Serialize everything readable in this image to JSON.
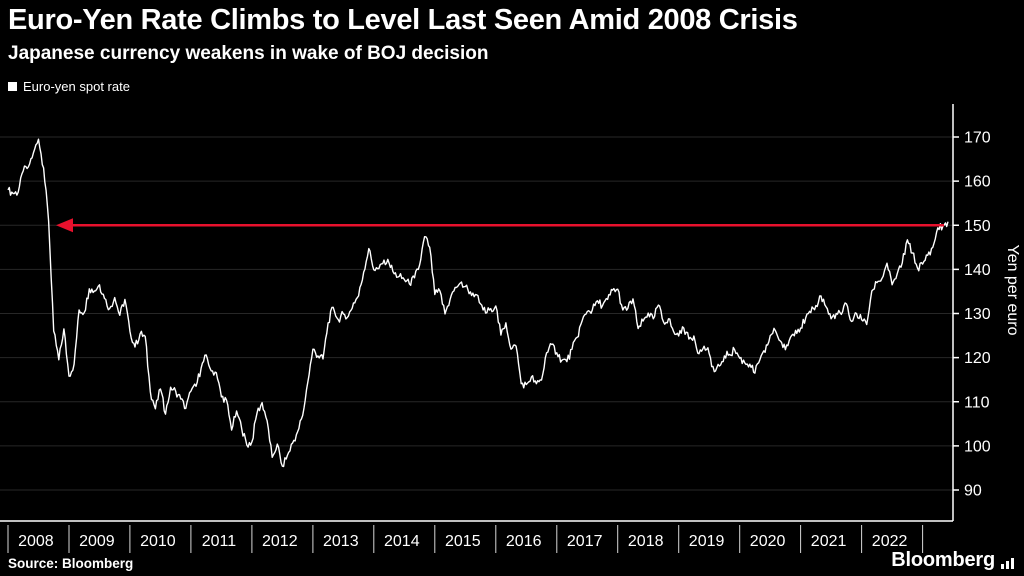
{
  "header": {
    "title": "Euro-Yen Rate Climbs to Level Last Seen Amid 2008 Crisis",
    "subtitle": "Japanese currency weakens in wake of BOJ decision"
  },
  "legend": {
    "items": [
      {
        "label": "Euro-yen spot rate",
        "marker_color": "#ffffff"
      }
    ]
  },
  "footer": {
    "source": "Source: Bloomberg",
    "brand": "Bloomberg"
  },
  "colors": {
    "background": "#000000",
    "text": "#ffffff",
    "grid": "#272727",
    "axis": "#ffffff",
    "accent_red": "#e8112d"
  },
  "chart_data": {
    "type": "line",
    "title": "Euro-Yen Rate Climbs to Level Last Seen Amid 2008 Crisis",
    "subtitle": "Japanese currency weakens in wake of BOJ decision",
    "ylabel": "Yen per euro",
    "xlabel": "",
    "ylim": [
      83,
      177
    ],
    "yticks": [
      90,
      100,
      110,
      120,
      130,
      140,
      150,
      160,
      170
    ],
    "xticks": [
      2008,
      2009,
      2010,
      2011,
      2012,
      2013,
      2014,
      2015,
      2016,
      2017,
      2018,
      2019,
      2020,
      2021,
      2022
    ],
    "x_start": "2008-01",
    "x_interval": "monthly",
    "grid": "horizontal",
    "legend_position": "top-left",
    "annotation": {
      "type": "arrow-left",
      "y": 150,
      "color": "#e8112d"
    },
    "series": [
      {
        "name": "Euro-yen spot rate",
        "color": "#ffffff",
        "values": [
          158.0,
          157.2,
          157.5,
          162.3,
          163.2,
          166.4,
          169.5,
          163.0,
          151.0,
          126.0,
          119.5,
          126.5,
          115.8,
          118.5,
          130.8,
          130.2,
          135.6,
          135.1,
          136.5,
          133.4,
          131.1,
          133.6,
          129.6,
          133.2,
          126.0,
          122.4,
          125.4,
          124.8,
          112.3,
          108.4,
          112.9,
          107.2,
          113.3,
          112.4,
          110.6,
          108.5,
          112.4,
          113.5,
          117.6,
          120.6,
          117.0,
          116.6,
          111.1,
          110.4,
          103.6,
          107.9,
          103.9,
          100.2,
          100.9,
          107.4,
          109.8,
          105.7,
          97.4,
          100.4,
          95.4,
          97.9,
          100.6,
          103.2,
          106.9,
          114.4,
          121.9,
          120.4,
          119.7,
          127.9,
          131.4,
          128.6,
          129.9,
          129.4,
          132.4,
          134.0,
          139.4,
          144.7,
          139.9,
          140.2,
          142.1,
          141.4,
          139.0,
          138.4,
          137.7,
          136.7,
          138.1,
          141.0,
          147.4,
          145.0,
          134.3,
          135.1,
          129.9,
          133.2,
          135.9,
          136.9,
          136.1,
          134.9,
          134.3,
          132.2,
          130.1,
          131.1,
          131.7,
          125.1,
          127.9,
          121.9,
          122.6,
          114.1,
          113.9,
          115.6,
          114.1,
          114.9,
          121.1,
          123.0,
          121.1,
          119.4,
          119.1,
          121.9,
          124.6,
          128.4,
          130.4,
          130.8,
          132.9,
          131.8,
          133.2,
          135.3,
          135.5,
          130.8,
          131.2,
          133.3,
          126.6,
          128.3,
          130.1,
          128.8,
          131.9,
          128.1,
          128.8,
          125.9,
          124.9,
          126.7,
          124.2,
          124.9,
          120.9,
          122.6,
          120.9,
          116.8,
          118.1,
          120.4,
          120.7,
          121.8,
          119.9,
          118.8,
          118.5,
          116.5,
          119.6,
          121.2,
          125.0,
          126.2,
          123.8,
          121.8,
          124.6,
          126.2,
          126.7,
          129.0,
          130.2,
          131.8,
          134.0,
          131.5,
          128.8,
          130.0,
          129.8,
          132.2,
          128.2,
          130.0,
          128.6,
          127.5,
          135.1,
          137.0,
          137.9,
          141.4,
          136.5,
          139.0,
          141.5,
          146.7,
          143.7,
          140.3,
          141.2,
          143.2,
          145.0,
          149.4,
          149.8,
          150.8
        ]
      }
    ]
  }
}
